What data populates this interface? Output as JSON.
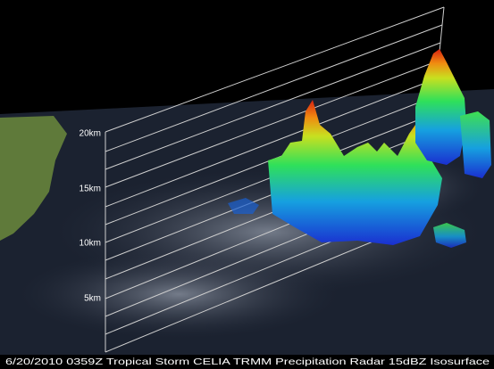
{
  "axis_labels": [
    "20km",
    "15km",
    "10km",
    "5km"
  ],
  "caption": "6/20/2010 0359Z Tropical Storm CELIA TRMM Precipitation Radar 15dBZ Isosurface"
}
